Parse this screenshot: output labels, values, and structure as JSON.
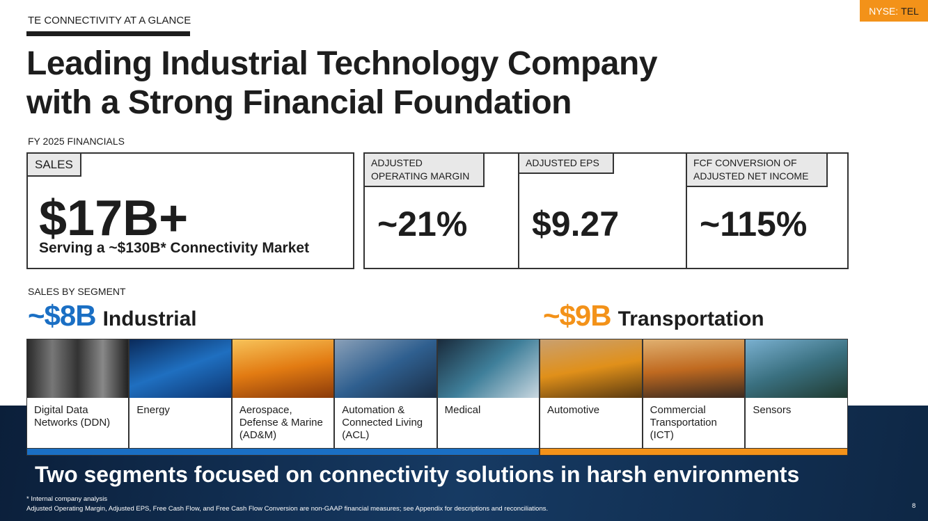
{
  "header": {
    "eyebrow": "TE CONNECTIVITY AT A GLANCE",
    "ticker_prefix": "NYSE:",
    "ticker": "TEL",
    "title_line1": "Leading Industrial Technology Company",
    "title_line2": "with a Strong Financial Foundation"
  },
  "financials": {
    "label": "FY 2025 FINANCIALS",
    "sales": {
      "tag": "SALES",
      "value": "$17B+",
      "note": "Serving a ~$130B* Connectivity Market"
    },
    "metrics": [
      {
        "tag": "ADJUSTED OPERATING MARGIN",
        "value": "~21%"
      },
      {
        "tag": "ADJUSTED EPS",
        "value": "$9.27"
      },
      {
        "tag": "FCF CONVERSION OF ADJUSTED NET INCOME",
        "value": "~115%"
      }
    ]
  },
  "segments": {
    "label": "SALES BY SEGMENT",
    "groups": [
      {
        "amount": "~$8B",
        "name": "Industrial",
        "color": "#1a6fc4",
        "markets": [
          "Digital Data Networks (DDN)",
          "Energy",
          "Aerospace, Defense & Marine (AD&M)",
          "Automation & Connected Living (ACL)",
          "Medical"
        ]
      },
      {
        "amount": "~$9B",
        "name": "Transportation",
        "color": "#f39219",
        "markets": [
          "Automotive",
          "Commercial Transportation (ICT)",
          "Sensors"
        ]
      }
    ]
  },
  "tagline": "Two segments focused on connectivity solutions in harsh environments",
  "footnotes": [
    "* Internal company analysis",
    "Adjusted Operating Margin,  Adjusted EPS, Free Cash Flow, and Free Cash Flow Conversion are non-GAAP financial measures; see Appendix for descriptions and reconciliations."
  ],
  "page_number": "8"
}
